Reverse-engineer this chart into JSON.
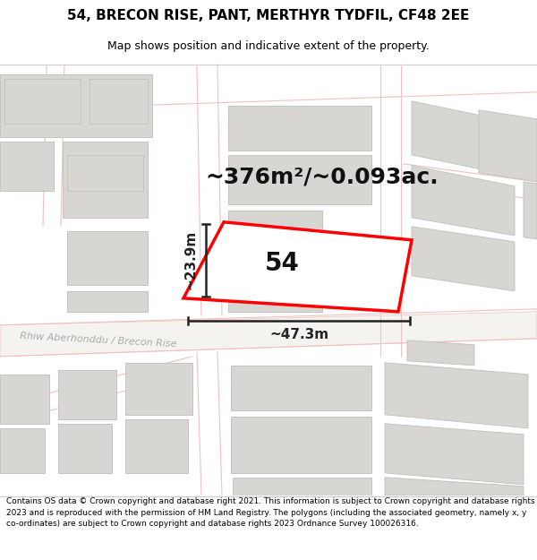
{
  "title": "54, BRECON RISE, PANT, MERTHYR TYDFIL, CF48 2EE",
  "subtitle": "Map shows position and indicative extent of the property.",
  "area_text": "~376m²/~0.093ac.",
  "label_54": "54",
  "dim_width": "~47.3m",
  "dim_height": "~23.9m",
  "street_label": "Rhiw Aberhonddu / Brecon Rise",
  "footer": "Contains OS data © Crown copyright and database right 2021. This information is subject to Crown copyright and database rights 2023 and is reproduced with the permission of HM Land Registry. The polygons (including the associated geometry, namely x, y co-ordinates) are subject to Crown copyright and database rights 2023 Ordnance Survey 100026316.",
  "map_bg": "#f0eeeb",
  "building_fill": "#d8d6d3",
  "building_edge": "#c5c3c0",
  "road_pink": "#f0c0c0",
  "road_fill": "#ffffff",
  "highlight_fill": "#ffffff",
  "highlight_stroke": "#ff0000",
  "dim_color": "#222222",
  "title_fs": 11,
  "subtitle_fs": 9,
  "area_fs": 18,
  "label_fs": 20,
  "dim_fs": 11,
  "street_fs": 8,
  "footer_fs": 6.5
}
